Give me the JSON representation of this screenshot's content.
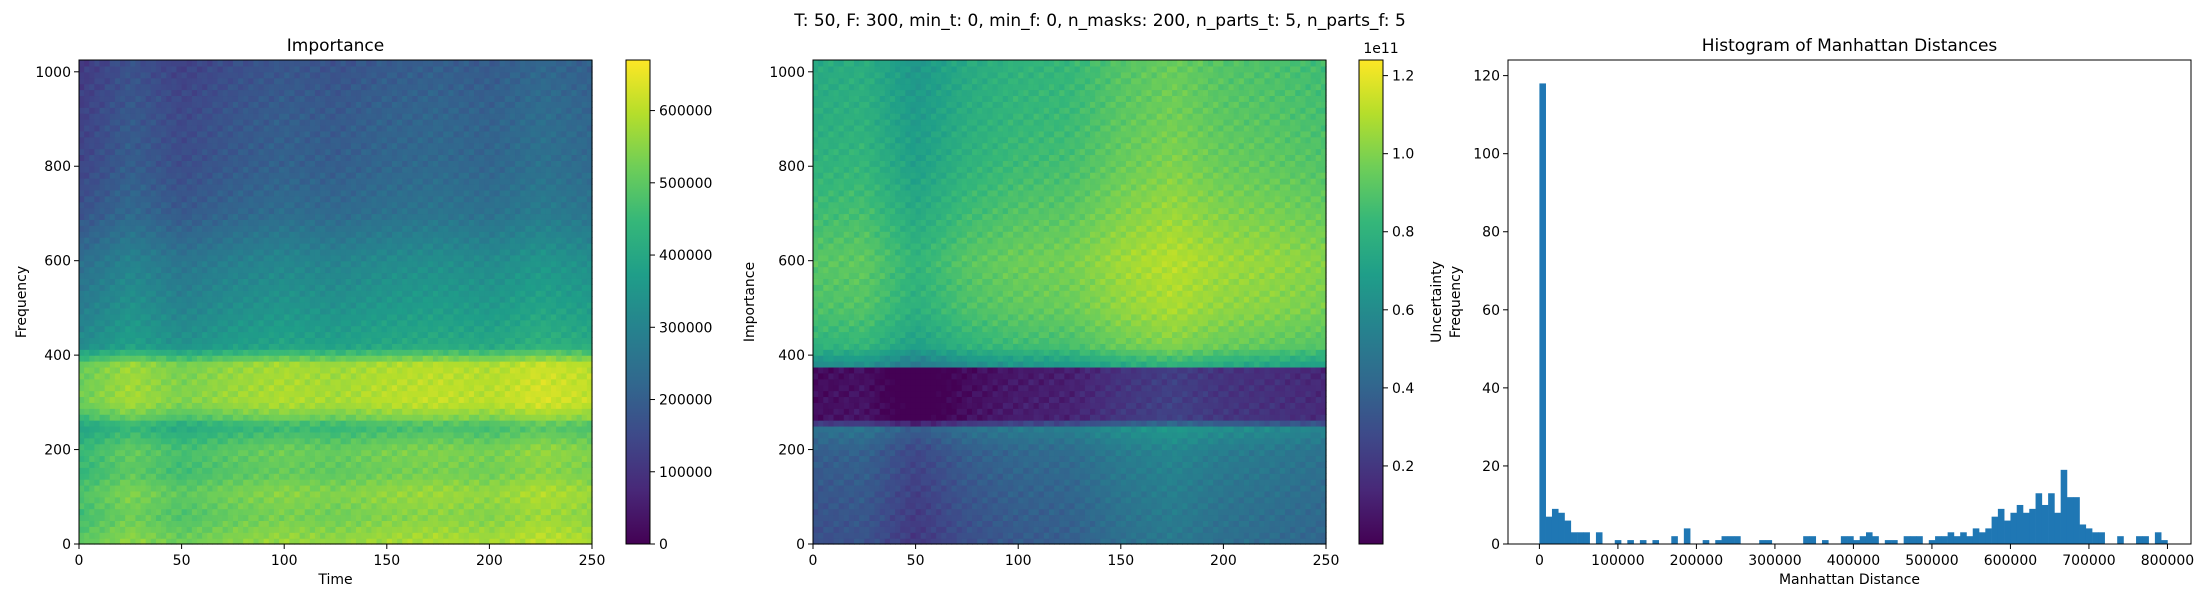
{
  "suptitle": "T: 50, F: 300, min_t: 0, min_f: 0, n_masks: 200, n_parts_t: 5, n_parts_f: 5",
  "colormap_stops": [
    "#440154",
    "#482878",
    "#3e4989",
    "#31688e",
    "#26828e",
    "#1f9e89",
    "#35b779",
    "#6ece58",
    "#b5de2b",
    "#fde725"
  ],
  "bar_color": "#1f77b4",
  "chart_data": [
    {
      "type": "heatmap",
      "title": "Importance",
      "xlabel": "Time",
      "ylabel": "Frequency",
      "xlim": [
        0,
        250
      ],
      "ylim": [
        0,
        1025
      ],
      "x_ticks": [
        0,
        50,
        100,
        150,
        200,
        250
      ],
      "y_ticks": [
        0,
        200,
        400,
        600,
        800,
        1000
      ],
      "colorbar": {
        "label": "Importance",
        "range": [
          0,
          670000
        ],
        "ticks": [
          0,
          100000,
          200000,
          300000,
          400000,
          500000,
          600000
        ],
        "tick_labels": [
          "0",
          "100000",
          "200000",
          "300000",
          "400000",
          "500000",
          "600000"
        ],
        "offset_text": ""
      },
      "frequency_profile": {
        "frequency": [
          0,
          60,
          110,
          150,
          200,
          250,
          270,
          300,
          380,
          420,
          500,
          600,
          700,
          800,
          900,
          1025
        ],
        "level": [
          560000,
          520000,
          540000,
          500000,
          510000,
          440000,
          520000,
          580000,
          570000,
          380000,
          340000,
          300000,
          230000,
          200000,
          190000,
          170000
        ]
      },
      "time_profile": {
        "time": [
          0,
          25,
          50,
          75,
          100,
          125,
          150,
          175,
          200,
          225,
          250
        ],
        "level": [
          -60000,
          0,
          -40000,
          -10000,
          10000,
          0,
          20000,
          30000,
          20000,
          50000,
          30000
        ]
      }
    },
    {
      "type": "heatmap",
      "title": "",
      "xlabel": "",
      "ylabel": "",
      "xlim": [
        0,
        250
      ],
      "ylim": [
        0,
        1025
      ],
      "x_ticks": [
        0,
        50,
        100,
        150,
        200,
        250
      ],
      "y_ticks": [
        0,
        200,
        400,
        600,
        800,
        1000
      ],
      "colorbar": {
        "label": "Uncertainty",
        "range": [
          0,
          1.24
        ],
        "ticks": [
          0.2,
          0.4,
          0.6,
          0.8,
          1.0,
          1.2
        ],
        "tick_labels": [
          "0.2",
          "0.4",
          "0.6",
          "0.8",
          "1.0",
          "1.2"
        ],
        "offset_text": "1e11"
      },
      "frequency_profile": {
        "frequency": [
          0,
          100,
          200,
          250,
          260,
          370,
          380,
          420,
          500,
          600,
          700,
          800,
          900,
          1025
        ],
        "level": [
          0.35,
          0.38,
          0.42,
          0.52,
          0.1,
          0.08,
          0.65,
          0.85,
          0.93,
          0.96,
          0.9,
          0.85,
          0.82,
          0.8
        ]
      },
      "time_profile": {
        "time": [
          0,
          25,
          50,
          75,
          100,
          125,
          150,
          175,
          200,
          225,
          250
        ],
        "level": [
          -0.05,
          -0.03,
          -0.15,
          -0.05,
          0.0,
          0.02,
          0.1,
          0.15,
          0.1,
          0.08,
          0.05
        ]
      }
    },
    {
      "type": "bar",
      "title": "Histogram of Manhattan Distances",
      "xlabel": "Manhattan Distance",
      "ylabel": "Frequency",
      "xlim": [
        -40000,
        830000
      ],
      "ylim": [
        0,
        124
      ],
      "x_ticks": [
        0,
        100000,
        200000,
        300000,
        400000,
        500000,
        600000,
        700000,
        800000
      ],
      "y_ticks": [
        0,
        20,
        40,
        60,
        80,
        100,
        120
      ],
      "bin_width": 8000,
      "bins": [
        [
          0,
          118
        ],
        [
          8000,
          7
        ],
        [
          16000,
          9
        ],
        [
          24000,
          8
        ],
        [
          32000,
          6
        ],
        [
          40000,
          3
        ],
        [
          48000,
          3
        ],
        [
          56000,
          3
        ],
        [
          72000,
          3
        ],
        [
          96000,
          1
        ],
        [
          112000,
          1
        ],
        [
          128000,
          1
        ],
        [
          144000,
          1
        ],
        [
          168000,
          2
        ],
        [
          184000,
          4
        ],
        [
          208000,
          1
        ],
        [
          224000,
          1
        ],
        [
          232000,
          2
        ],
        [
          240000,
          2
        ],
        [
          248000,
          2
        ],
        [
          280000,
          1
        ],
        [
          288000,
          1
        ],
        [
          336000,
          2
        ],
        [
          344000,
          2
        ],
        [
          360000,
          1
        ],
        [
          384000,
          2
        ],
        [
          392000,
          2
        ],
        [
          400000,
          1
        ],
        [
          408000,
          2
        ],
        [
          416000,
          3
        ],
        [
          424000,
          2
        ],
        [
          440000,
          1
        ],
        [
          448000,
          1
        ],
        [
          464000,
          2
        ],
        [
          472000,
          2
        ],
        [
          480000,
          2
        ],
        [
          496000,
          1
        ],
        [
          504000,
          2
        ],
        [
          512000,
          2
        ],
        [
          520000,
          3
        ],
        [
          528000,
          2
        ],
        [
          536000,
          3
        ],
        [
          544000,
          2
        ],
        [
          552000,
          4
        ],
        [
          560000,
          3
        ],
        [
          568000,
          4
        ],
        [
          576000,
          7
        ],
        [
          584000,
          9
        ],
        [
          592000,
          6
        ],
        [
          600000,
          8
        ],
        [
          608000,
          10
        ],
        [
          616000,
          8
        ],
        [
          624000,
          9
        ],
        [
          632000,
          13
        ],
        [
          640000,
          10
        ],
        [
          648000,
          13
        ],
        [
          656000,
          8
        ],
        [
          664000,
          19
        ],
        [
          672000,
          12
        ],
        [
          680000,
          12
        ],
        [
          688000,
          5
        ],
        [
          696000,
          4
        ],
        [
          704000,
          3
        ],
        [
          712000,
          3
        ],
        [
          736000,
          2
        ],
        [
          760000,
          2
        ],
        [
          768000,
          2
        ],
        [
          784000,
          3
        ],
        [
          792000,
          1
        ]
      ]
    }
  ]
}
